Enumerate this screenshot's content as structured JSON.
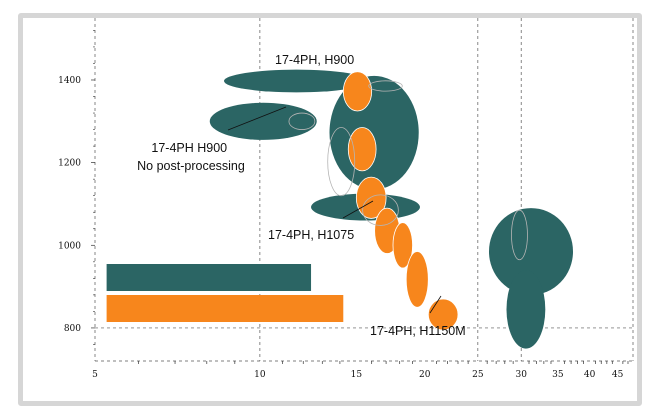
{
  "chart_data": {
    "type": "bubble-ellipse",
    "title": "",
    "xlabel": "",
    "ylabel": "",
    "x_scale": "log",
    "xlim": [
      5,
      48
    ],
    "ylim": [
      720,
      1550
    ],
    "x_ticks": [
      5,
      10,
      15,
      20,
      25,
      30,
      35,
      40,
      45
    ],
    "y_ticks": [
      800,
      1000,
      1200,
      1400
    ],
    "grid": "dashed",
    "colors": {
      "teal": "#2b6564",
      "orange": "#f7861c",
      "outline": "#b5b5b5"
    },
    "series": [
      {
        "color": "teal",
        "regions": [
          {
            "x": [
              8.6,
              15.8
            ],
            "y": [
              1370,
              1425
            ]
          },
          {
            "x": [
              8.1,
              12.7
            ],
            "y": [
              1255,
              1345
            ]
          },
          {
            "x": [
              13.4,
              19.5
            ],
            "y": [
              1135,
              1410
            ]
          },
          {
            "x": [
              12.4,
              19.6
            ],
            "y": [
              1060,
              1125
            ]
          },
          {
            "x": [
              26.2,
              37.3
            ],
            "y": [
              880,
              1090
            ]
          },
          {
            "x": [
              28.2,
              33.2
            ],
            "y": [
              750,
              940
            ]
          }
        ]
      },
      {
        "color": "orange",
        "regions": [
          {
            "x": [
              14.2,
              16.0
            ],
            "y": [
              1325,
              1420
            ]
          },
          {
            "x": [
              14.5,
              16.3
            ],
            "y": [
              1180,
              1285
            ]
          },
          {
            "x": [
              15.0,
              17.0
            ],
            "y": [
              1065,
              1165
            ]
          },
          {
            "x": [
              16.2,
              18.0
            ],
            "y": [
              980,
              1090
            ]
          },
          {
            "x": [
              17.5,
              19.0
            ],
            "y": [
              945,
              1055
            ]
          },
          {
            "x": [
              18.5,
              20.3
            ],
            "y": [
              850,
              985
            ]
          },
          {
            "x": [
              20.3,
              23.0
            ],
            "y": [
              795,
              870
            ]
          }
        ]
      }
    ],
    "ghost_regions": [
      {
        "x": [
          15.8,
          18.2
        ],
        "y": [
          1373,
          1398
        ]
      },
      {
        "x": [
          11.3,
          12.6
        ],
        "y": [
          1280,
          1320
        ]
      },
      {
        "x": [
          28.8,
          30.8
        ],
        "y": [
          965,
          1085
        ]
      },
      {
        "x": [
          15.4,
          17.9
        ],
        "y": [
          1048,
          1122
        ]
      },
      {
        "x": [
          13.3,
          14.9
        ],
        "y": [
          1120,
          1285
        ]
      }
    ],
    "legend_bars": [
      {
        "color": "teal",
        "x": [
          5.25,
          12.4
        ]
      },
      {
        "color": "orange",
        "x": [
          5.25,
          14.2
        ]
      }
    ],
    "annotations": [
      {
        "lines": [
          "17-4PH, H900"
        ]
      },
      {
        "lines": [
          "17-4PH H900",
          "No post-processing"
        ]
      },
      {
        "lines": [
          "17-4PH, H1075"
        ]
      },
      {
        "lines": [
          "17-4PH, H1150M"
        ]
      }
    ]
  }
}
